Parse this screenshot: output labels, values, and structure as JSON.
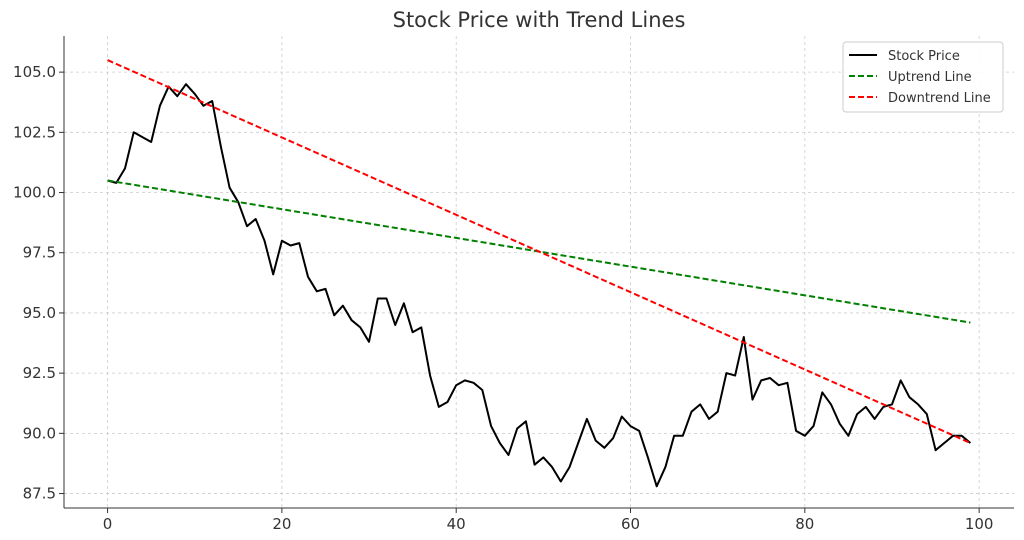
{
  "chart_data": {
    "type": "line",
    "title": "Stock Price with Trend Lines",
    "xlabel": "",
    "ylabel": "",
    "xlim": [
      -5,
      104
    ],
    "ylim": [
      86.9,
      106.5
    ],
    "xticks": [
      0,
      20,
      40,
      60,
      80,
      100
    ],
    "xtick_labels": [
      "0",
      "20",
      "40",
      "60",
      "80",
      "100"
    ],
    "yticks": [
      87.5,
      90.0,
      92.5,
      95.0,
      97.5,
      100.0,
      102.5,
      105.0
    ],
    "ytick_labels": [
      "87.5",
      "90.0",
      "92.5",
      "95.0",
      "97.5",
      "100.0",
      "102.5",
      "105.0"
    ],
    "grid": true,
    "legend_position": "top-right",
    "series": [
      {
        "name": "Stock Price",
        "color": "#000000",
        "dash": "solid",
        "x": [
          0,
          1,
          2,
          3,
          4,
          5,
          6,
          7,
          8,
          9,
          10,
          11,
          12,
          13,
          14,
          15,
          16,
          17,
          18,
          19,
          20,
          21,
          22,
          23,
          24,
          25,
          26,
          27,
          28,
          29,
          30,
          31,
          32,
          33,
          34,
          35,
          36,
          37,
          38,
          39,
          40,
          41,
          42,
          43,
          44,
          45,
          46,
          47,
          48,
          49,
          50,
          51,
          52,
          53,
          54,
          55,
          56,
          57,
          58,
          59,
          60,
          61,
          62,
          63,
          64,
          65,
          66,
          67,
          68,
          69,
          70,
          71,
          72,
          73,
          74,
          75,
          76,
          77,
          78,
          79,
          80,
          81,
          82,
          83,
          84,
          85,
          86,
          87,
          88,
          89,
          90,
          91,
          92,
          93,
          94,
          95,
          96,
          97,
          98,
          99
        ],
        "y": [
          100.5,
          100.4,
          101.0,
          102.5,
          102.3,
          102.1,
          103.6,
          104.4,
          104.0,
          104.5,
          104.1,
          103.6,
          103.8,
          101.9,
          100.2,
          99.6,
          98.6,
          98.9,
          98.0,
          96.6,
          98.0,
          97.8,
          97.9,
          96.5,
          95.9,
          96.0,
          94.9,
          95.3,
          94.7,
          94.4,
          93.8,
          95.6,
          95.6,
          94.5,
          95.4,
          94.2,
          94.4,
          92.4,
          91.1,
          91.3,
          92.0,
          92.2,
          92.1,
          91.8,
          90.3,
          89.6,
          89.1,
          90.2,
          90.5,
          88.7,
          89.0,
          88.6,
          88.0,
          88.6,
          89.6,
          90.6,
          89.7,
          89.4,
          89.8,
          90.7,
          90.3,
          90.1,
          89.0,
          87.8,
          88.6,
          89.9,
          89.9,
          90.9,
          91.2,
          90.6,
          90.9,
          92.5,
          92.4,
          94.0,
          91.4,
          92.2,
          92.3,
          92.0,
          92.1,
          90.1,
          89.9,
          90.3,
          91.7,
          91.2,
          90.4,
          89.9,
          90.8,
          91.1,
          90.6,
          91.1,
          91.2,
          92.2,
          91.5,
          91.2,
          90.8,
          89.3,
          89.6,
          89.9,
          89.9,
          89.6
        ]
      },
      {
        "name": "Uptrend Line",
        "color": "#008000",
        "dash": "dashed",
        "x": [
          0,
          99
        ],
        "y": [
          100.5,
          94.6
        ]
      },
      {
        "name": "Downtrend Line",
        "color": "#ff0000",
        "dash": "dashed",
        "x": [
          0,
          99
        ],
        "y": [
          105.5,
          89.6
        ]
      }
    ]
  }
}
